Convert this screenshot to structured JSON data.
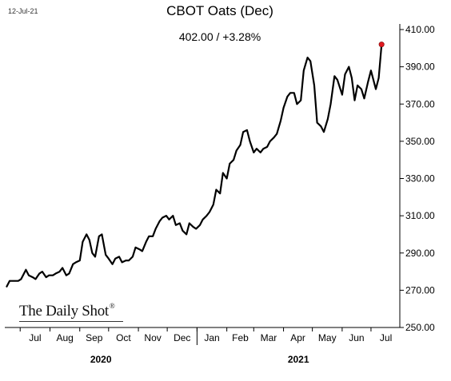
{
  "header": {
    "date_stamp": "12-Jul-21",
    "title": "CBOT Oats (Dec)",
    "subtitle": "402.00  /  +3.28%"
  },
  "branding": {
    "logo_text": "The Daily Shot",
    "logo_mark": "®"
  },
  "colors": {
    "line": "#000000",
    "last_point": "#e0191f",
    "axis": "#000000"
  },
  "chart_data": {
    "type": "line",
    "title": "CBOT Oats (Dec)",
    "xlabel": "",
    "ylabel": "",
    "ylim": [
      250,
      415
    ],
    "y_axis_side": "right",
    "grid": false,
    "legend": "none",
    "yticks": [
      "250.00",
      "270.00",
      "290.00",
      "310.00",
      "330.00",
      "350.00",
      "370.00",
      "390.00",
      "410.00"
    ],
    "ytick_values": [
      250,
      270,
      290,
      310,
      330,
      350,
      370,
      390,
      410
    ],
    "month_ticks": [
      "Jul",
      "Aug",
      "Sep",
      "Oct",
      "Nov",
      "Dec",
      "Jan",
      "Feb",
      "Mar",
      "Apr",
      "May",
      "Jun",
      "Jul"
    ],
    "year_ticks": [
      "2020",
      "2021"
    ],
    "x_start": "2020-06-15",
    "x_end": "2021-07-31",
    "last_value": 402.0,
    "series": [
      {
        "x": [
          "2020-06-17",
          "2020-06-20",
          "2020-06-24",
          "2020-06-29",
          "2020-07-02",
          "2020-07-07",
          "2020-07-10",
          "2020-07-14",
          "2020-07-17",
          "2020-07-21",
          "2020-07-24",
          "2020-07-28",
          "2020-07-31",
          "2020-08-04",
          "2020-08-07",
          "2020-08-11",
          "2020-08-14",
          "2020-08-18",
          "2020-08-21",
          "2020-08-25",
          "2020-08-28",
          "2020-09-01",
          "2020-09-04",
          "2020-09-08",
          "2020-09-11",
          "2020-09-14",
          "2020-09-17",
          "2020-09-21",
          "2020-09-24",
          "2020-09-28",
          "2020-10-01",
          "2020-10-05",
          "2020-10-08",
          "2020-10-12",
          "2020-10-15",
          "2020-10-19",
          "2020-10-22",
          "2020-10-26",
          "2020-10-29",
          "2020-11-02",
          "2020-11-05",
          "2020-11-09",
          "2020-11-12",
          "2020-11-16",
          "2020-11-19",
          "2020-11-23",
          "2020-11-26",
          "2020-11-30",
          "2020-12-03",
          "2020-12-07",
          "2020-12-10",
          "2020-12-14",
          "2020-12-17",
          "2020-12-21",
          "2020-12-24",
          "2020-12-28",
          "2020-12-31",
          "2021-01-04",
          "2021-01-07",
          "2021-01-11",
          "2021-01-14",
          "2021-01-18",
          "2021-01-21",
          "2021-01-25",
          "2021-01-28",
          "2021-02-01",
          "2021-02-04",
          "2021-02-08",
          "2021-02-11",
          "2021-02-15",
          "2021-02-18",
          "2021-02-22",
          "2021-02-25",
          "2021-03-01",
          "2021-03-04",
          "2021-03-08",
          "2021-03-11",
          "2021-03-15",
          "2021-03-18",
          "2021-03-22",
          "2021-03-25",
          "2021-03-29",
          "2021-04-01",
          "2021-04-05",
          "2021-04-08",
          "2021-04-12",
          "2021-04-15",
          "2021-04-19",
          "2021-04-22",
          "2021-04-26",
          "2021-04-29",
          "2021-05-03",
          "2021-05-06",
          "2021-05-10",
          "2021-05-13",
          "2021-05-17",
          "2021-05-20",
          "2021-05-24",
          "2021-05-27",
          "2021-06-01",
          "2021-06-04",
          "2021-06-08",
          "2021-06-11",
          "2021-06-14",
          "2021-06-17",
          "2021-06-21",
          "2021-06-24",
          "2021-06-28",
          "2021-07-01",
          "2021-07-06",
          "2021-07-09",
          "2021-07-12"
        ],
        "values": [
          272,
          275,
          275,
          275,
          276,
          281,
          278,
          277,
          276,
          279,
          280,
          277,
          278,
          278,
          279,
          280,
          282,
          278,
          279,
          284,
          285,
          286,
          296,
          300,
          297,
          290,
          288,
          299,
          300,
          289,
          287,
          284,
          287,
          288,
          285,
          286,
          286,
          288,
          293,
          292,
          291,
          296,
          299,
          299,
          303,
          307,
          309,
          310,
          308,
          310,
          305,
          306,
          302,
          300,
          306,
          304,
          303,
          305,
          308,
          310,
          312,
          316,
          324,
          322,
          333,
          330,
          338,
          340,
          345,
          348,
          355,
          356,
          350,
          344,
          346,
          344,
          346,
          347,
          350,
          352,
          354,
          361,
          368,
          374,
          376,
          376,
          370,
          372,
          388,
          395,
          393,
          380,
          360,
          358,
          355,
          362,
          370,
          385,
          383,
          375,
          386,
          390,
          384,
          372,
          380,
          378,
          373,
          382,
          388,
          378,
          384,
          402
        ]
      }
    ]
  }
}
